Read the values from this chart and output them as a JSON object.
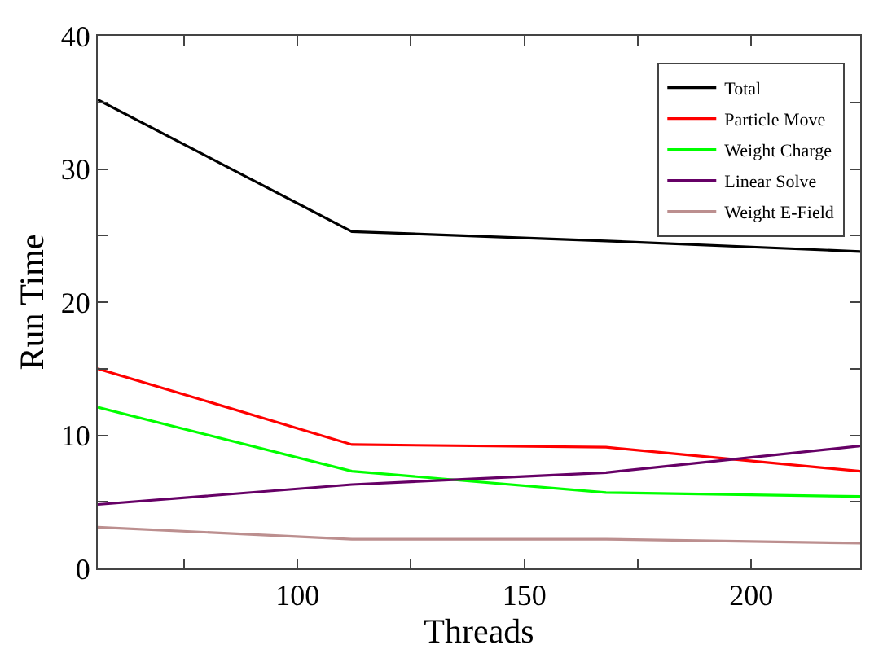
{
  "chart_data": {
    "type": "line",
    "xlabel": "Threads",
    "ylabel": "Run Time",
    "x": [
      56,
      112,
      168,
      224
    ],
    "series": [
      {
        "name": "Total",
        "color": "#000000",
        "values": [
          35.2,
          25.3,
          24.6,
          23.8
        ]
      },
      {
        "name": "Particle Move",
        "color": "#ff0000",
        "values": [
          15.0,
          9.3,
          9.1,
          7.3
        ]
      },
      {
        "name": "Weight Charge",
        "color": "#00ff00",
        "values": [
          12.1,
          7.3,
          5.7,
          5.4
        ]
      },
      {
        "name": "Linear Solve",
        "color": "#660066",
        "values": [
          4.8,
          6.3,
          7.2,
          9.2
        ]
      },
      {
        "name": "Weight E-Field",
        "color": "#bc8f8f",
        "values": [
          3.1,
          2.2,
          2.2,
          1.9
        ]
      }
    ],
    "xlim": [
      56,
      224
    ],
    "xticks": [
      {
        "value": 75,
        "label": null
      },
      100,
      {
        "value": 125,
        "label": null
      },
      150,
      {
        "value": 175,
        "label": null
      },
      200
    ],
    "ylim": [
      0,
      40
    ],
    "yticks": [
      0,
      {
        "value": 5,
        "label": null
      },
      10,
      {
        "value": 15,
        "label": null
      },
      20,
      {
        "value": 25,
        "label": null
      },
      30,
      {
        "value": 35,
        "label": null
      },
      40
    ],
    "legend": "top right",
    "marker": "none",
    "line_style": "solid"
  }
}
